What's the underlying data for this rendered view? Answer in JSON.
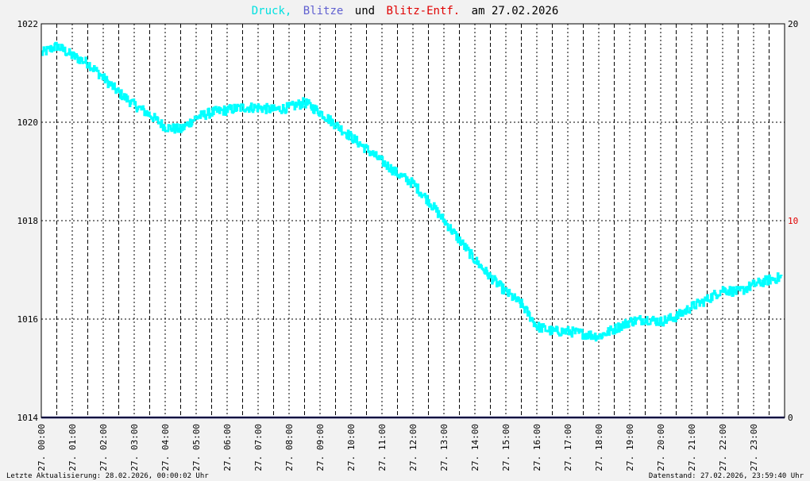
{
  "title": {
    "part1": "Druck,",
    "part2": "Blitze",
    "part3": "und",
    "part4": "Blitz-Entf.",
    "part5": "am 27.02.2026"
  },
  "footer": {
    "left": "Letzte Aktualisierung: 28.02.2026, 00:00:02 Uhr",
    "right": "Datenstand: 27.02.2026, 23:59:40 Uhr"
  },
  "colors": {
    "pressure": "#00ffff",
    "blitze": "#4040c0",
    "blitz_entf": "#ff0000",
    "background": "#ffffff",
    "grid": "#000000"
  },
  "chart_data": {
    "type": "line",
    "x_unit": "hour",
    "x_ticks": [
      "27. 00:00",
      "27. 01:00",
      "27. 02:00",
      "27. 03:00",
      "27. 04:00",
      "27. 05:00",
      "27. 06:00",
      "27. 07:00",
      "27. 08:00",
      "27. 09:00",
      "27. 10:00",
      "27. 11:00",
      "27. 12:00",
      "27. 13:00",
      "27. 14:00",
      "27. 15:00",
      "27. 16:00",
      "27. 17:00",
      "27. 18:00",
      "27. 19:00",
      "27. 20:00",
      "27. 21:00",
      "27. 22:00",
      "27. 23:00"
    ],
    "xlim": [
      0,
      24
    ],
    "y_left": {
      "ylim": [
        1014,
        1022
      ],
      "ticks": [
        "1014",
        "1016",
        "1018",
        "1020",
        "1022"
      ]
    },
    "y_right": {
      "ylim": [
        0,
        20
      ],
      "ticks": [
        "0",
        "10",
        "20"
      ]
    },
    "grid": true,
    "series": [
      {
        "name": "Druck",
        "axis": "left",
        "x": [
          0,
          0.5,
          1,
          1.5,
          2,
          2.5,
          3,
          3.5,
          4,
          4.5,
          5,
          5.5,
          6,
          6.5,
          7,
          7.5,
          8,
          8.5,
          9,
          9.5,
          10,
          10.5,
          11,
          11.5,
          12,
          12.5,
          13,
          13.5,
          14,
          14.5,
          15,
          15.5,
          16,
          16.5,
          17,
          17.5,
          18,
          18.5,
          19,
          19.5,
          20,
          20.5,
          21,
          21.5,
          22,
          22.5,
          23,
          23.5,
          23.9
        ],
        "values": [
          1021.4,
          1021.55,
          1021.35,
          1021.2,
          1020.9,
          1020.6,
          1020.35,
          1020.15,
          1019.9,
          1019.85,
          1020.1,
          1020.2,
          1020.25,
          1020.3,
          1020.3,
          1020.25,
          1020.3,
          1020.4,
          1020.2,
          1019.95,
          1019.7,
          1019.45,
          1019.2,
          1018.95,
          1018.75,
          1018.4,
          1018.0,
          1017.6,
          1017.2,
          1016.85,
          1016.55,
          1016.3,
          1015.85,
          1015.75,
          1015.75,
          1015.7,
          1015.65,
          1015.8,
          1015.95,
          1016.0,
          1015.95,
          1016.05,
          1016.25,
          1016.4,
          1016.6,
          1016.55,
          1016.7,
          1016.8,
          1016.85
        ],
        "noise": 0.1
      },
      {
        "name": "Blitze",
        "axis": "right",
        "x": [
          0,
          24
        ],
        "values": [
          0,
          0
        ]
      }
    ]
  }
}
